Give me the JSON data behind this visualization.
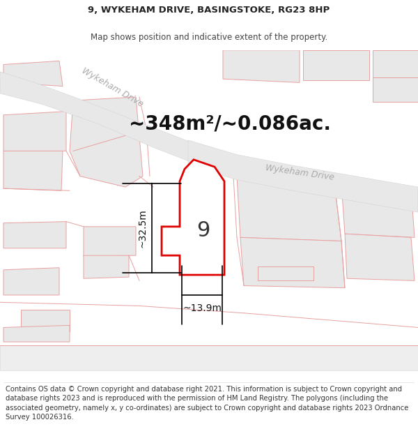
{
  "title_line1": "9, WYKEHAM DRIVE, BASINGSTOKE, RG23 8HP",
  "title_line2": "Map shows position and indicative extent of the property.",
  "area_text": "~348m²/~0.086ac.",
  "number_label": "9",
  "dim_height": "~32.5m",
  "dim_width": "~13.9m",
  "road_label1": "Wykeham Drive",
  "road_label2": "Wykeham Drive",
  "footer_text": "Contains OS data © Crown copyright and database right 2021. This information is subject to Crown copyright and database rights 2023 and is reproduced with the permission of HM Land Registry. The polygons (including the associated geometry, namely x, y co-ordinates) are subject to Crown copyright and database rights 2023 Ordnance Survey 100026316.",
  "bg_color": "#ffffff",
  "map_bg": "#ffffff",
  "road_fill": "#e8e8e8",
  "property_fill": "#ffffff",
  "property_edge": "#e00000",
  "other_poly_fill": "#e8e8e8",
  "other_poly_edge": "#e8a0a0",
  "title_fontsize": 9.5,
  "subtitle_fontsize": 8.5,
  "area_fontsize": 20,
  "number_fontsize": 22,
  "dim_fontsize": 10,
  "road_label_fontsize": 9,
  "footer_fontsize": 7.2
}
